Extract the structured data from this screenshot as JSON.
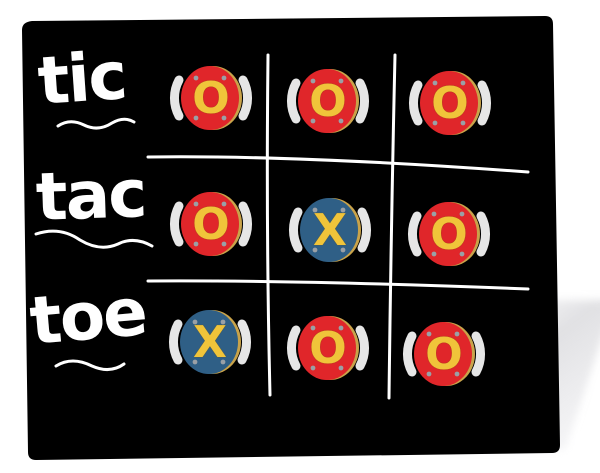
{
  "title_words": [
    "tic",
    "tac",
    "toe"
  ],
  "board": {
    "rows": [
      [
        {
          "symbol": "O",
          "disc_color": "#e0262a"
        },
        {
          "symbol": "O",
          "disc_color": "#e0262a"
        },
        {
          "symbol": "O",
          "disc_color": "#e0262a"
        }
      ],
      [
        {
          "symbol": "O",
          "disc_color": "#e0262a"
        },
        {
          "symbol": "X",
          "disc_color": "#2f5f86"
        },
        {
          "symbol": "O",
          "disc_color": "#e0262a"
        }
      ],
      [
        {
          "symbol": "X",
          "disc_color": "#2f5f86"
        },
        {
          "symbol": "O",
          "disc_color": "#e0262a"
        },
        {
          "symbol": "O",
          "disc_color": "#e0262a"
        }
      ]
    ]
  },
  "colors": {
    "panel": "#000000",
    "chalk": "#ffffff",
    "symbol": "#f0c43a",
    "o_disc": "#e0262a",
    "x_disc": "#2f5f86"
  }
}
